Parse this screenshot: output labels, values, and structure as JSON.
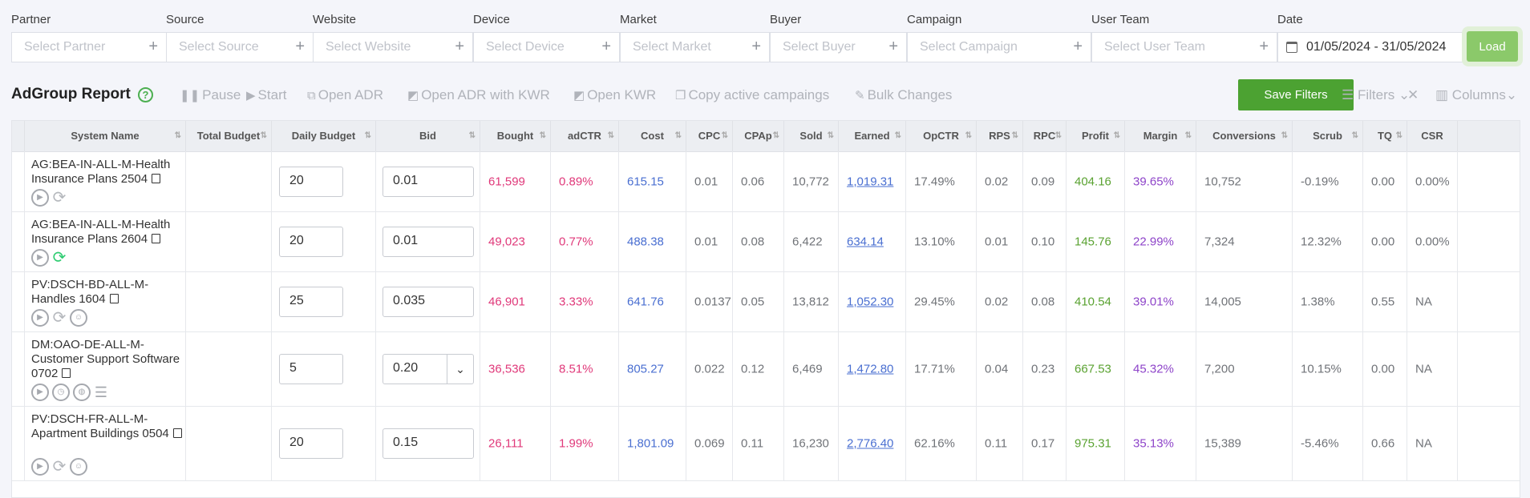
{
  "filters": [
    {
      "label": "Partner",
      "placeholder": "Select Partner"
    },
    {
      "label": "Source",
      "placeholder": "Select Source"
    },
    {
      "label": "Website",
      "placeholder": "Select Website"
    },
    {
      "label": "Device",
      "placeholder": "Select Device"
    },
    {
      "label": "Market",
      "placeholder": "Select Market"
    },
    {
      "label": "Buyer",
      "placeholder": "Select Buyer"
    },
    {
      "label": "Campaign",
      "placeholder": "Select Campaign"
    },
    {
      "label": "User Team",
      "placeholder": "Select User Team"
    }
  ],
  "date": {
    "label": "Date",
    "value": "01/05/2024 - 31/05/2024"
  },
  "load_label": "Load",
  "report": {
    "title": "AdGroup Report",
    "help": "?"
  },
  "toolbar": {
    "pause": "Pause",
    "start": "Start",
    "open_adr": "Open ADR",
    "open_adr_kwr": "Open ADR with KWR",
    "open_kwr": "Open KWR",
    "copy_active": "Copy active campaings",
    "bulk_changes": "Bulk Changes",
    "save_filters": "Save Filters",
    "filters": "Filters",
    "columns": "Columns"
  },
  "columns": [
    "System Name",
    "Total Budget",
    "Daily Budget",
    "Bid",
    "Bought",
    "adCTR",
    "Cost",
    "CPC",
    "CPAp",
    "Sold",
    "Earned",
    "OpCTR",
    "RPS",
    "RPC",
    "Profit",
    "Margin",
    "Conversions",
    "Scrub",
    "TQ",
    "CSR"
  ],
  "rows": [
    {
      "name": "AG:BEA-IN-ALL-M-Health Insurance Plans 2504",
      "icons": [
        "play",
        "sync"
      ],
      "total_budget": "",
      "daily": "20",
      "bid": "0.01",
      "bid_dropdown": false,
      "bought": "61,599",
      "adctr": "0.89%",
      "cost": "615.15",
      "cpc": "0.01",
      "cpap": "0.06",
      "sold": "10,772",
      "earned": "1,019.31",
      "opctr": "17.49%",
      "rps": "0.02",
      "rpc": "0.09",
      "profit": "404.16",
      "margin": "39.65%",
      "conversions": "10,752",
      "scrub": "-0.19%",
      "tq": "0.00",
      "csr": "0.00%"
    },
    {
      "name": "AG:BEA-IN-ALL-M-Health Insurance Plans 2604",
      "icons": [
        "play",
        "sync-green"
      ],
      "total_budget": "",
      "daily": "20",
      "bid": "0.01",
      "bid_dropdown": false,
      "bought": "49,023",
      "adctr": "0.77%",
      "cost": "488.38",
      "cpc": "0.01",
      "cpap": "0.08",
      "sold": "6,422",
      "earned": "634.14",
      "opctr": "13.10%",
      "rps": "0.01",
      "rpc": "0.10",
      "profit": "145.76",
      "margin": "22.99%",
      "conversions": "7,324",
      "scrub": "12.32%",
      "tq": "0.00",
      "csr": "0.00%"
    },
    {
      "name": "PV:DSCH-BD-ALL-M-Handles 1604",
      "icons": [
        "play",
        "sync",
        "user"
      ],
      "total_budget": "",
      "daily": "25",
      "bid": "0.035",
      "bid_dropdown": false,
      "bought": "46,901",
      "adctr": "3.33%",
      "cost": "641.76",
      "cpc": "0.0137",
      "cpap": "0.05",
      "sold": "13,812",
      "earned": "1,052.30",
      "opctr": "29.45%",
      "rps": "0.02",
      "rpc": "0.08",
      "profit": "410.54",
      "margin": "39.01%",
      "conversions": "14,005",
      "scrub": "1.38%",
      "tq": "0.55",
      "csr": "NA"
    },
    {
      "name": "DM:OAO-DE-ALL-M-Customer Support Software 0702",
      "icons": [
        "play",
        "clock",
        "globe",
        "list"
      ],
      "total_budget": "",
      "daily": "5",
      "bid": "0.20",
      "bid_dropdown": true,
      "bought": "36,536",
      "adctr": "8.51%",
      "cost": "805.27",
      "cpc": "0.022",
      "cpap": "0.12",
      "sold": "6,469",
      "earned": "1,472.80",
      "opctr": "17.71%",
      "rps": "0.04",
      "rpc": "0.23",
      "profit": "667.53",
      "margin": "45.32%",
      "conversions": "7,200",
      "scrub": "10.15%",
      "tq": "0.00",
      "csr": "NA"
    },
    {
      "name": "PV:DSCH-FR-ALL-M-Apartment Buildings 0504",
      "icons": [
        "play",
        "sync",
        "user"
      ],
      "total_budget": "",
      "daily": "20",
      "bid": "0.15",
      "bid_dropdown": false,
      "bought": "26,111",
      "adctr": "1.99%",
      "cost": "1,801.09",
      "cpc": "0.069",
      "cpap": "0.11",
      "sold": "16,230",
      "earned": "2,776.40",
      "opctr": "62.16%",
      "rps": "0.11",
      "rpc": "0.17",
      "profit": "975.31",
      "margin": "35.13%",
      "conversions": "15,389",
      "scrub": "-5.46%",
      "tq": "0.66",
      "csr": "NA"
    }
  ]
}
